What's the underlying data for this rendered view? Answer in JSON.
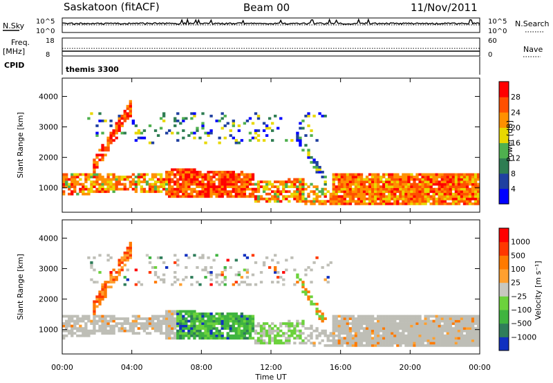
{
  "header": {
    "station": "Saskatoon (fitACF)",
    "beam": "Beam 00",
    "date": "11/Nov/2011"
  },
  "top_panels": {
    "nsky_label": "N.Sky",
    "nsky_ticks": [
      "10^5",
      "10^0"
    ],
    "nsearch_label": "N.Search",
    "nsearch_ticks": [
      "10^5",
      "10^0"
    ],
    "freq_label_1": "Freq.",
    "freq_label_2": "[MHz]",
    "freq_ticks": [
      "18",
      "8"
    ],
    "nave_label": "Nave",
    "nave_ticks": [
      "60",
      "0"
    ],
    "cpid_label": "CPID",
    "cpid_value": "themis 3300"
  },
  "chart_data": [
    {
      "type": "heatmap",
      "panel": "power",
      "ylabel": "Slant Range [km]",
      "xlabel": "",
      "ylim": [
        200,
        4600
      ],
      "yticks": [
        "1000",
        "2000",
        "3000",
        "4000"
      ],
      "x": [
        "00:00",
        "04:00",
        "08:00",
        "12:00",
        "16:00",
        "20:00",
        "00:00"
      ],
      "colorbar": {
        "label": "Power [dB]",
        "ticks": [
          "4",
          "8",
          "12",
          "16",
          "20",
          "24",
          "28"
        ],
        "colors": [
          "#0000ff",
          "#2040a0",
          "#2e7d52",
          "#4fb04f",
          "#e8d800",
          "#ff9000",
          "#ff5000",
          "#ff0000"
        ]
      }
    },
    {
      "type": "heatmap",
      "panel": "velocity",
      "ylabel": "Slant Range [km]",
      "xlabel": "Time UT",
      "ylim": [
        200,
        4600
      ],
      "yticks": [
        "1000",
        "2000",
        "3000",
        "4000"
      ],
      "x": [
        "00:00",
        "04:00",
        "08:00",
        "12:00",
        "16:00",
        "20:00",
        "00:00"
      ],
      "colorbar": {
        "label": "Velocity [m s⁻¹]",
        "ticks": [
          "1000",
          "500",
          "100",
          "25",
          "−25",
          "−100",
          "−500",
          "−1000"
        ],
        "colors": [
          "#1030c0",
          "#2f7d5a",
          "#3fb43f",
          "#6cd23c",
          "#c8c8c0",
          "#ffa030",
          "#ff7a00",
          "#ff3800",
          "#ff0000"
        ]
      }
    }
  ],
  "colors": {
    "ground_scatter": "#bebeb6"
  }
}
